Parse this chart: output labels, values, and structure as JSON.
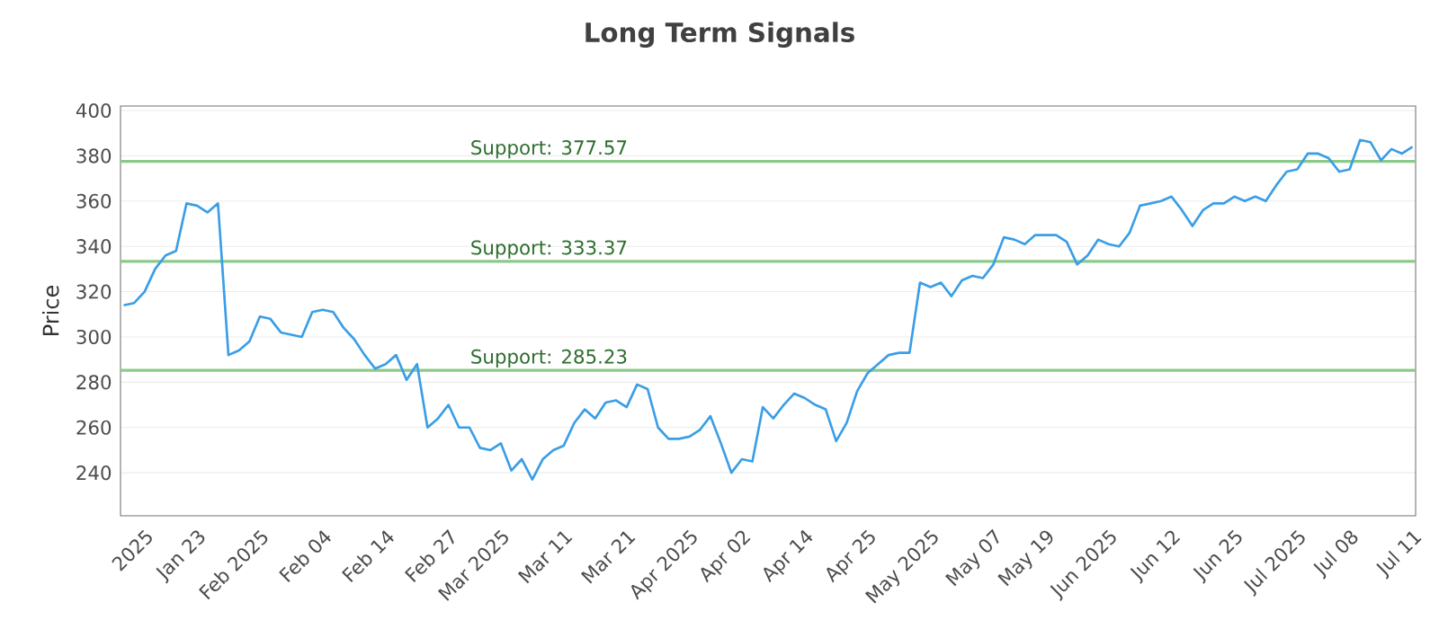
{
  "chart_data": {
    "type": "line",
    "title": "Long Term Signals",
    "ylabel": "Price",
    "categories": [
      null,
      null,
      "2025",
      null,
      null,
      null,
      null,
      "Jan 23",
      null,
      null,
      null,
      null,
      null,
      "Feb 2025",
      null,
      null,
      null,
      null,
      null,
      "Feb 04",
      null,
      null,
      null,
      null,
      null,
      "Feb 14",
      null,
      null,
      null,
      null,
      null,
      "Feb 27",
      null,
      null,
      null,
      null,
      "Mar 2025",
      null,
      null,
      null,
      null,
      null,
      "Mar 11",
      null,
      null,
      null,
      null,
      null,
      "Mar 21",
      null,
      null,
      null,
      null,
      null,
      "Apr 2025",
      null,
      null,
      null,
      null,
      "Apr 02",
      null,
      null,
      null,
      null,
      null,
      "Apr 14",
      null,
      null,
      null,
      null,
      null,
      "Apr 25",
      null,
      null,
      null,
      null,
      null,
      "May 2025",
      null,
      null,
      null,
      null,
      null,
      "May 07",
      null,
      null,
      null,
      null,
      "May 19",
      null,
      null,
      null,
      null,
      null,
      "Jun 2025",
      null,
      null,
      null,
      null,
      null,
      "Jun 12",
      null,
      null,
      null,
      null,
      null,
      "Jun 25",
      null,
      null,
      null,
      null,
      null,
      "Jul 2025",
      null,
      null,
      null,
      null,
      "Jul 08",
      null,
      null,
      null,
      null,
      null,
      "Jul 11"
    ],
    "values": [
      314,
      315,
      320,
      330,
      336,
      338,
      359,
      358,
      355,
      359,
      292,
      294,
      298,
      309,
      308,
      302,
      301,
      300,
      311,
      312,
      311,
      304,
      299,
      292,
      286,
      288,
      292,
      281,
      288,
      260,
      264,
      270,
      260,
      260,
      251,
      250,
      253,
      241,
      246,
      237,
      246,
      250,
      252,
      262,
      268,
      264,
      271,
      272,
      269,
      279,
      277,
      260,
      255,
      255,
      256,
      259,
      265,
      253,
      240,
      246,
      245,
      269,
      264,
      270,
      275,
      273,
      270,
      268,
      254,
      262,
      276,
      284,
      288,
      292,
      293,
      293,
      324,
      322,
      324,
      318,
      325,
      327,
      326,
      332,
      344,
      343,
      341,
      345,
      345,
      345,
      342,
      332,
      336,
      343,
      341,
      340,
      346,
      358,
      359,
      360,
      362,
      356,
      349,
      356,
      359,
      359,
      362,
      360,
      362,
      360,
      367,
      373,
      374,
      381,
      381,
      379,
      373,
      374,
      387,
      386,
      378,
      383,
      381,
      384
    ],
    "color": "#3a9ee6",
    "marker": "none",
    "line_style": "solid",
    "ylim": [
      221,
      402
    ],
    "yticks": [
      240,
      260,
      280,
      300,
      320,
      340,
      360,
      380,
      400
    ],
    "grid": "y",
    "ref_lines": [
      {
        "axis": "y",
        "value": 377.57,
        "label": "Support: 377.57",
        "color": "#8cc98a"
      },
      {
        "axis": "y",
        "value": 333.37,
        "label": "Support: 333.37",
        "color": "#8cc98a"
      },
      {
        "axis": "y",
        "value": 285.23,
        "label": "Support: 285.23",
        "color": "#8cc98a"
      }
    ]
  }
}
